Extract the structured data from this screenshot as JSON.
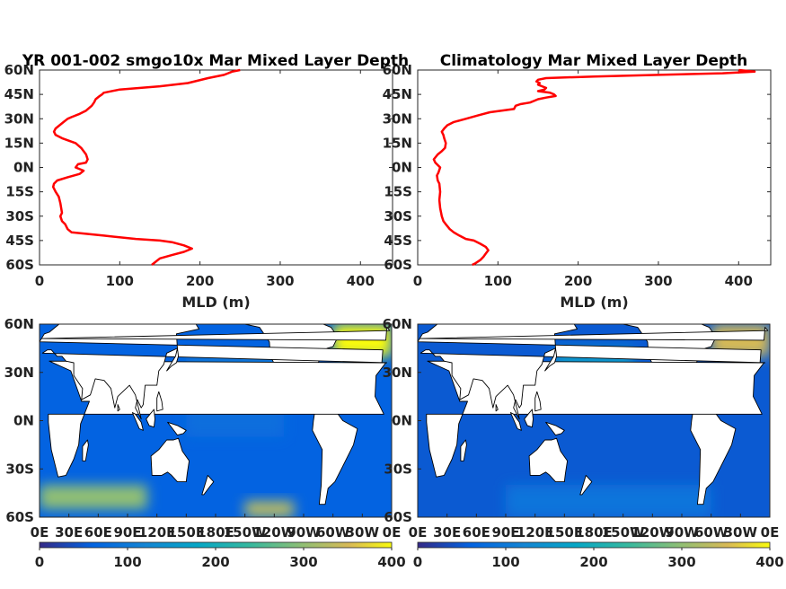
{
  "chart_data": [
    {
      "type": "line",
      "title": "YR 001-002 smgo10x Mar Mixed Layer Depth",
      "xlabel": "MLD (m)",
      "xlim": [
        0,
        440
      ],
      "ylim": [
        -60,
        60
      ],
      "x_ticks": [
        "0",
        "100",
        "200",
        "300",
        "400"
      ],
      "y_ticks": [
        "60N",
        "45N",
        "30N",
        "15N",
        "0N",
        "15S",
        "30S",
        "45S",
        "60S"
      ],
      "line_color": "#ff0000",
      "series": [
        {
          "lat": [
            60,
            59,
            57,
            55,
            52,
            50,
            48,
            46,
            45,
            44,
            42,
            40,
            38,
            35,
            33,
            31,
            30,
            28,
            26,
            24,
            22,
            20,
            18,
            15,
            12,
            10,
            8,
            5,
            3,
            2,
            0,
            -2,
            -4,
            -6,
            -8,
            -10,
            -12,
            -15,
            -18,
            -20,
            -22,
            -25,
            -28,
            -30,
            -33,
            -35,
            -38,
            -40,
            -42,
            -44,
            -45,
            -46,
            -48,
            -50,
            -52,
            -54,
            -56,
            -58,
            -60
          ],
          "mld": [
            250,
            240,
            230,
            210,
            185,
            150,
            100,
            80,
            78,
            75,
            70,
            68,
            65,
            58,
            50,
            40,
            35,
            30,
            25,
            20,
            18,
            20,
            28,
            45,
            52,
            55,
            58,
            60,
            58,
            48,
            45,
            55,
            50,
            35,
            22,
            18,
            17,
            20,
            24,
            25,
            26,
            27,
            28,
            26,
            28,
            32,
            35,
            40,
            80,
            120,
            150,
            165,
            180,
            190,
            180,
            165,
            150,
            145,
            140
          ]
        }
      ]
    },
    {
      "type": "line",
      "title": "Climatology Mar Mixed Layer Depth",
      "xlabel": "MLD (m)",
      "xlim": [
        0,
        440
      ],
      "ylim": [
        -60,
        60
      ],
      "x_ticks": [
        "0",
        "100",
        "200",
        "300",
        "400"
      ],
      "y_ticks": [
        "60N",
        "45N",
        "30N",
        "15N",
        "0N",
        "15S",
        "30S",
        "45S",
        "60S"
      ],
      "line_color": "#ff0000",
      "series": [
        {
          "lat": [
            60,
            59,
            58,
            57,
            56,
            55,
            54,
            53,
            52,
            51,
            50,
            49,
            48,
            47,
            46,
            45,
            44,
            43,
            42,
            41,
            40,
            39,
            38,
            36,
            34,
            32,
            30,
            28,
            26,
            24,
            22,
            20,
            18,
            15,
            12,
            10,
            8,
            5,
            3,
            0,
            -3,
            -5,
            -8,
            -10,
            -15,
            -20,
            -25,
            -30,
            -33,
            -35,
            -38,
            -40,
            -42,
            -44,
            -45,
            -47,
            -49,
            -51,
            -53,
            -55,
            -57,
            -59,
            -60
          ],
          "mld": [
            400,
            420,
            380,
            300,
            220,
            160,
            150,
            148,
            152,
            150,
            155,
            160,
            158,
            150,
            165,
            170,
            172,
            160,
            150,
            145,
            140,
            128,
            122,
            120,
            90,
            75,
            60,
            45,
            37,
            33,
            30,
            32,
            33,
            35,
            34,
            30,
            25,
            20,
            22,
            28,
            26,
            24,
            25,
            27,
            28,
            27,
            28,
            30,
            32,
            35,
            40,
            45,
            52,
            60,
            70,
            78,
            85,
            88,
            85,
            82,
            78,
            72,
            68
          ]
        }
      ]
    },
    {
      "type": "heatmap",
      "title": "",
      "colormap": "parula",
      "clim": [
        0,
        400
      ],
      "x_ticks": [
        "0E",
        "30E",
        "60E",
        "90E",
        "120E",
        "150E",
        "180E",
        "150W",
        "120W",
        "90W",
        "60W",
        "30W",
        "0E"
      ],
      "y_ticks": [
        "60N",
        "30N",
        "0N",
        "30S",
        "60S"
      ],
      "colorbar_ticks": [
        "0",
        "100",
        "200",
        "300",
        "400"
      ],
      "regions": [
        {
          "lon_range": [
            0,
            360
          ],
          "lat_range": [
            -60,
            60
          ],
          "mld": 60
        },
        {
          "lon_range": [
            150,
            280
          ],
          "lat_range": [
            10,
            40
          ],
          "mld": 100
        },
        {
          "lon_range": [
            150,
            250
          ],
          "lat_range": [
            -10,
            10
          ],
          "mld": 80
        },
        {
          "lon_range": [
            300,
            360
          ],
          "lat_range": [
            40,
            60
          ],
          "mld": 400
        },
        {
          "lon_range": [
            0,
            110
          ],
          "lat_range": [
            -55,
            -40
          ],
          "mld": 300
        },
        {
          "lon_range": [
            210,
            260
          ],
          "lat_range": [
            -60,
            -50
          ],
          "mld": 330
        }
      ]
    },
    {
      "type": "heatmap",
      "title": "",
      "colormap": "parula",
      "clim": [
        0,
        400
      ],
      "x_ticks": [
        "0E",
        "30E",
        "60E",
        "90E",
        "120E",
        "150E",
        "180E",
        "150W",
        "120W",
        "90W",
        "60W",
        "30W",
        "0E"
      ],
      "y_ticks": [
        "60N",
        "30N",
        "0N",
        "30S",
        "60S"
      ],
      "colorbar_ticks": [
        "0",
        "100",
        "200",
        "300",
        "400"
      ],
      "regions": [
        {
          "lon_range": [
            0,
            360
          ],
          "lat_range": [
            -60,
            60
          ],
          "mld": 50
        },
        {
          "lon_range": [
            140,
            220
          ],
          "lat_range": [
            30,
            45
          ],
          "mld": 150
        },
        {
          "lon_range": [
            300,
            360
          ],
          "lat_range": [
            40,
            60
          ],
          "mld": 350
        },
        {
          "lon_range": [
            90,
            300
          ],
          "lat_range": [
            -60,
            -40
          ],
          "mld": 90
        }
      ]
    }
  ]
}
